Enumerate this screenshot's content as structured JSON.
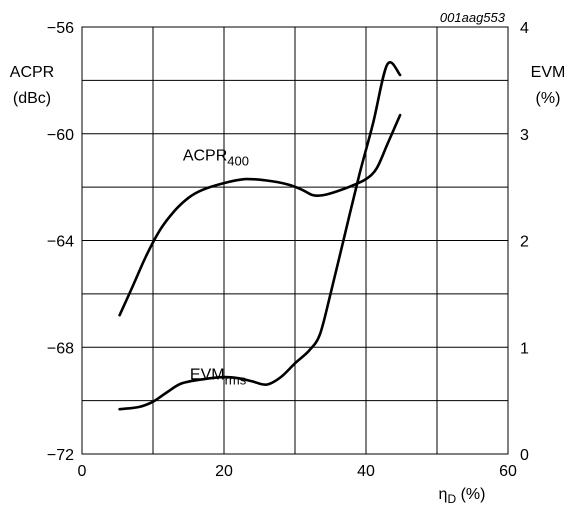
{
  "chart_data": {
    "type": "line",
    "figure_id": "001aag553",
    "xlabel": {
      "main": "η",
      "sub": "D",
      "unit": " (%)"
    },
    "ylabel_left": [
      "ACPR",
      "(dBc)"
    ],
    "ylabel_right": [
      "EVM",
      "(%)"
    ],
    "xlim": [
      0,
      60
    ],
    "ylim_left": [
      -72,
      -56
    ],
    "ylim_right": [
      0,
      4
    ],
    "x_ticks": [
      "0",
      "20",
      "40",
      "60"
    ],
    "y_left_ticks": [
      "−56",
      "−60",
      "−64",
      "−68",
      "−72"
    ],
    "y_right_ticks": [
      "4",
      "3",
      "2",
      "1",
      "0"
    ],
    "grid": true,
    "series": [
      {
        "name": "ACPR",
        "name_sub": "400",
        "axis": "left",
        "label_at": [
          14.2,
          -61.0
        ],
        "x": [
          5.3,
          7,
          9,
          11,
          13,
          15,
          17,
          20,
          23,
          26,
          29,
          31,
          32.5,
          34,
          36,
          38,
          40,
          41.5,
          43,
          44.8
        ],
        "y": [
          -66.8,
          -65.8,
          -64.6,
          -63.6,
          -62.9,
          -62.4,
          -62.1,
          -61.85,
          -61.7,
          -61.75,
          -61.9,
          -62.1,
          -62.3,
          -62.3,
          -62.15,
          -61.95,
          -61.7,
          -61.3,
          -60.4,
          -59.3
        ]
      },
      {
        "name": "EVM",
        "name_sub": "rms",
        "axis": "right",
        "label_at": [
          15.2,
          0.7
        ],
        "x": [
          5.3,
          8,
          10,
          12,
          14,
          17,
          20,
          22,
          24,
          26,
          28,
          30,
          32,
          33.5,
          35,
          37,
          39,
          41,
          43,
          44.8
        ],
        "y": [
          0.42,
          0.44,
          0.49,
          0.58,
          0.66,
          0.7,
          0.72,
          0.71,
          0.68,
          0.65,
          0.72,
          0.85,
          0.97,
          1.12,
          1.5,
          2.05,
          2.6,
          3.1,
          3.65,
          3.55
        ]
      }
    ]
  }
}
